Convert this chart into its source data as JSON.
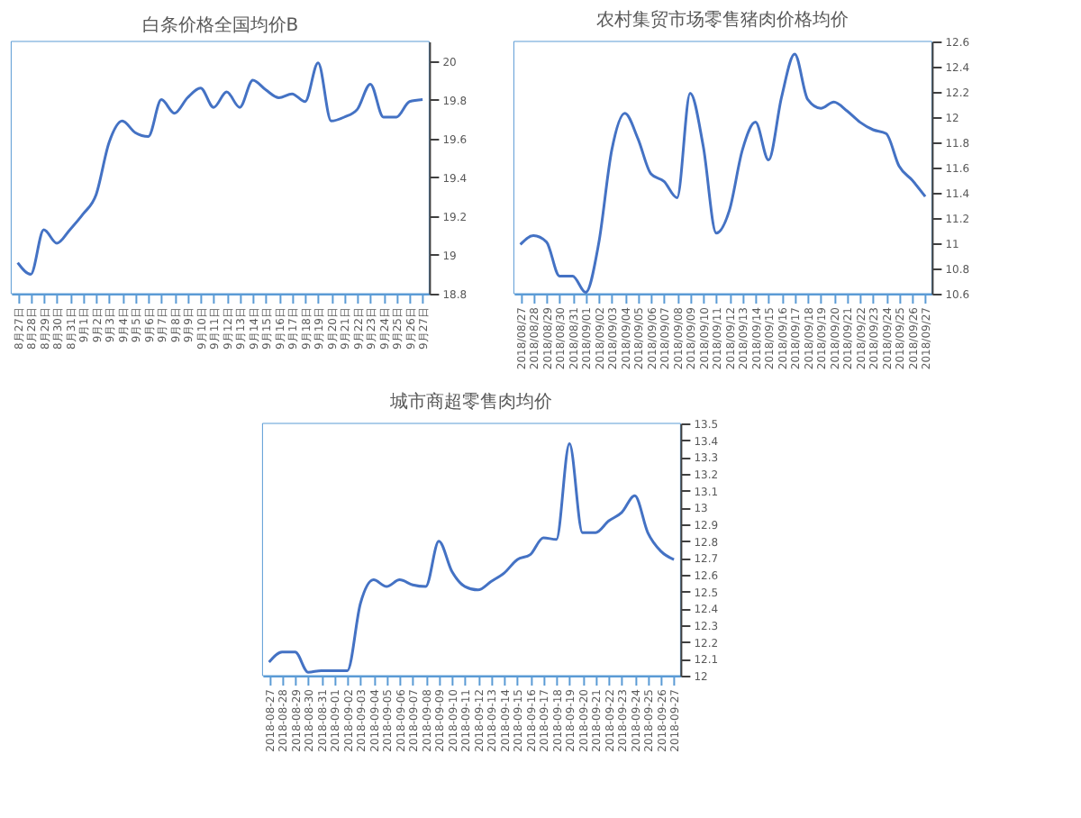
{
  "chart_data": [
    {
      "type": "line",
      "title": "白条价格全国均价B",
      "color": "#4472c4",
      "grid": false,
      "categories": [
        "8月27日",
        "8月28日",
        "8月29日",
        "8月30日",
        "8月31日",
        "9月1日",
        "9月2日",
        "9月3日",
        "9月4日",
        "9月5日",
        "9月6日",
        "9月7日",
        "9月8日",
        "9月9日",
        "9月10日",
        "9月11日",
        "9月12日",
        "9月13日",
        "9月14日",
        "9月15日",
        "9月16日",
        "9月17日",
        "9月18日",
        "9月19日",
        "9月20日",
        "9月21日",
        "9月22日",
        "9月23日",
        "9月24日",
        "9月25日",
        "9月26日",
        "9月27日"
      ],
      "values": [
        18.96,
        18.9,
        19.13,
        19.06,
        19.13,
        19.21,
        19.31,
        19.58,
        19.69,
        19.63,
        19.61,
        19.8,
        19.73,
        19.81,
        19.86,
        19.76,
        19.84,
        19.76,
        19.9,
        19.85,
        19.81,
        19.83,
        19.79,
        19.99,
        19.69,
        19.71,
        19.75,
        19.88,
        19.71,
        19.71,
        19.79,
        19.8
      ],
      "ylim": [
        18.8,
        20.1
      ],
      "yticks": [
        18.8,
        19,
        19.2,
        19.4,
        19.6,
        19.8,
        20
      ]
    },
    {
      "type": "line",
      "title": "农村集贸市场零售猪肉价格均价",
      "color": "#4472c4",
      "grid": false,
      "categories": [
        "2018/08/27",
        "2018/08/28",
        "2018/08/29",
        "2018/08/30",
        "2018/08/31",
        "2018/09/01",
        "2018/09/02",
        "2018/09/03",
        "2018/09/04",
        "2018/09/05",
        "2018/09/06",
        "2018/09/07",
        "2018/09/08",
        "2018/09/09",
        "2018/09/10",
        "2018/09/11",
        "2018/09/12",
        "2018/09/13",
        "2018/09/14",
        "2018/09/15",
        "2018/09/16",
        "2018/09/17",
        "2018/09/18",
        "2018/09/19",
        "2018/09/20",
        "2018/09/21",
        "2018/09/22",
        "2018/09/23",
        "2018/09/24",
        "2018/09/25",
        "2018/09/26",
        "2018/09/27"
      ],
      "values": [
        10.99,
        11.06,
        11.01,
        10.74,
        10.74,
        10.61,
        11.0,
        11.74,
        12.03,
        11.83,
        11.55,
        11.49,
        11.36,
        12.19,
        11.77,
        11.08,
        11.26,
        11.74,
        11.96,
        11.66,
        12.16,
        12.5,
        12.14,
        12.07,
        12.12,
        12.05,
        11.96,
        11.9,
        11.87,
        11.61,
        11.5,
        11.37
      ],
      "ylim": [
        10.6,
        12.6
      ],
      "yticks": [
        10.6,
        10.8,
        11,
        11.2,
        11.4,
        11.6,
        11.8,
        12,
        12.2,
        12.4,
        12.6
      ]
    },
    {
      "type": "line",
      "title": "城市商超零售肉均价",
      "color": "#4472c4",
      "grid": false,
      "categories": [
        "2018-08-27",
        "2018-08-28",
        "2018-08-29",
        "2018-08-30",
        "2018-08-31",
        "2018-09-01",
        "2018-09-02",
        "2018-09-03",
        "2018-09-04",
        "2018-09-05",
        "2018-09-06",
        "2018-09-07",
        "2018-09-08",
        "2018-09-09",
        "2018-09-10",
        "2018-09-11",
        "2018-09-12",
        "2018-09-13",
        "2018-09-14",
        "2018-09-15",
        "2018-09-16",
        "2018-09-17",
        "2018-09-18",
        "2018-09-19",
        "2018-09-20",
        "2018-09-21",
        "2018-09-22",
        "2018-09-23",
        "2018-09-24",
        "2018-09-25",
        "2018-09-26",
        "2018-09-27"
      ],
      "values": [
        12.08,
        12.14,
        12.14,
        12.02,
        12.03,
        12.03,
        12.03,
        12.43,
        12.57,
        12.53,
        12.57,
        12.54,
        12.53,
        12.8,
        12.62,
        12.53,
        12.51,
        12.56,
        12.61,
        12.69,
        12.72,
        12.82,
        12.81,
        13.38,
        12.85,
        12.85,
        12.92,
        12.97,
        13.07,
        12.85,
        12.74,
        12.69
      ],
      "ylim": [
        12,
        13.5
      ],
      "yticks": [
        12,
        12.1,
        12.2,
        12.3,
        12.4,
        12.5,
        12.6,
        12.7,
        12.8,
        12.9,
        13,
        13.1,
        13.2,
        13.3,
        13.4,
        13.5
      ]
    }
  ]
}
